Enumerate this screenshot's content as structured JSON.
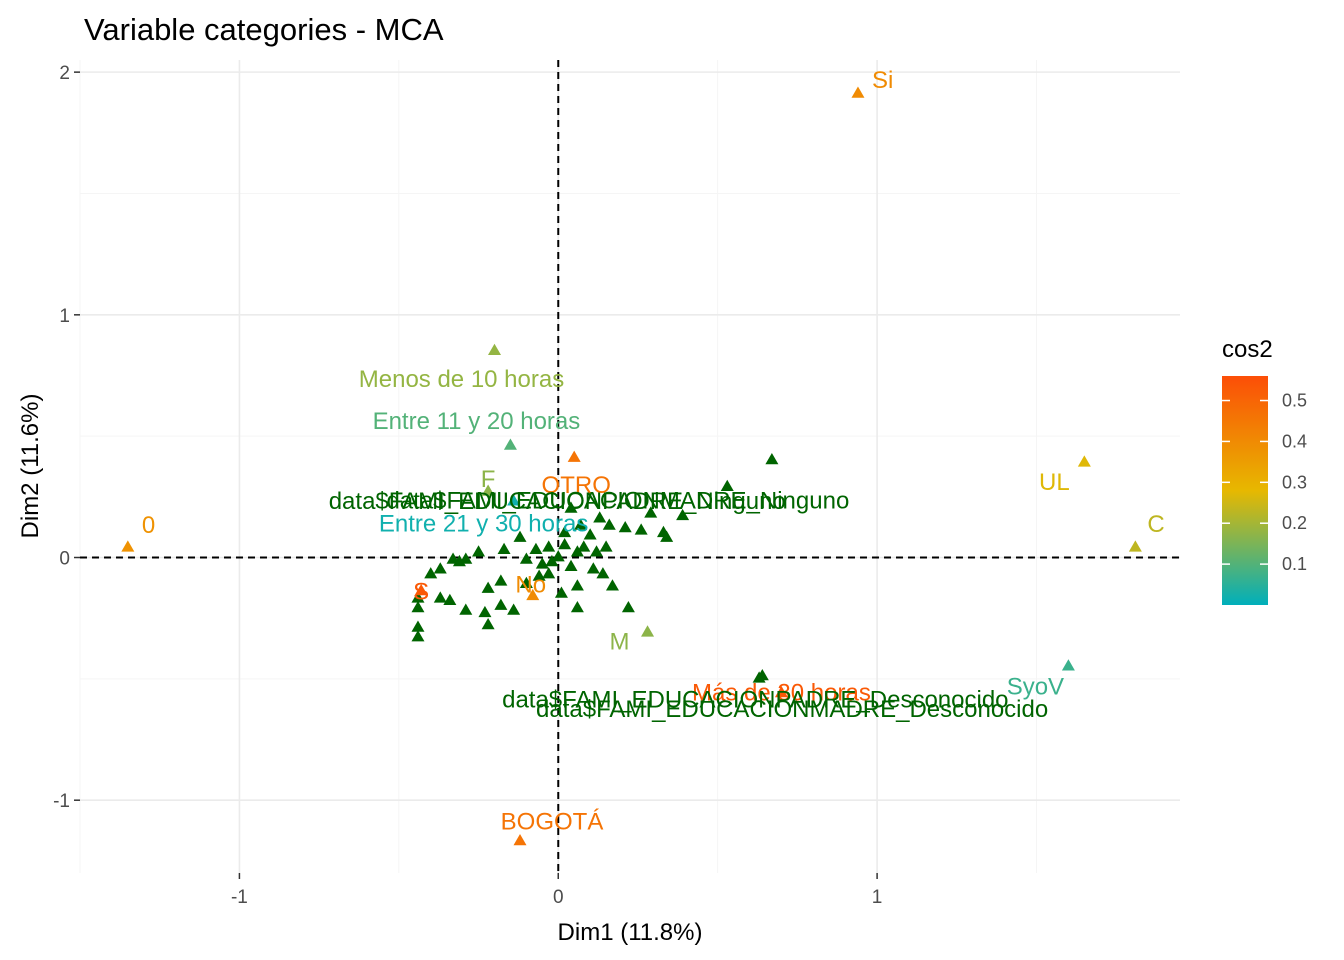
{
  "colors": {
    "panel_bg": "#ffffff",
    "grid_major": "#ebebeb",
    "grid_minor": "#f5f5f5",
    "refline": "#000000",
    "gradient": [
      "#00AFBB",
      "#E7B800",
      "#FC4E07"
    ],
    "individual_var": "#006400"
  },
  "chart_data": {
    "type": "scatter",
    "title": "Variable categories - MCA",
    "xlabel": "Dim1 (11.8%)",
    "ylabel": "Dim2 (11.6%)",
    "xlim": [
      -1.5,
      1.95
    ],
    "ylim": [
      -1.3,
      2.05
    ],
    "x_ticks": [
      -1,
      0,
      1
    ],
    "x_tick_labels": [
      "-1",
      "0",
      "1"
    ],
    "y_ticks": [
      -1,
      0,
      1,
      2
    ],
    "y_tick_labels": [
      "-1",
      "0",
      "1",
      "2"
    ],
    "grid": true,
    "reference_lines": {
      "x": 0,
      "y": 0,
      "style": "dashed"
    },
    "legend": {
      "title": "cos2",
      "placement": "right",
      "range": [
        0.0,
        0.56
      ],
      "ticks": [
        0.1,
        0.2,
        0.3,
        0.4,
        0.5
      ],
      "tick_labels": [
        "0.1",
        "0.2",
        "0.3",
        "0.4",
        "0.5"
      ]
    },
    "marker": "triangle",
    "points": [
      {
        "x": 0.94,
        "y": 1.91,
        "cos2": 0.4,
        "label": "Si"
      },
      {
        "x": -1.35,
        "y": 0.04,
        "cos2": 0.38,
        "label": "0"
      },
      {
        "x": 1.65,
        "y": 0.39,
        "cos2": 0.27,
        "label": "UL"
      },
      {
        "x": 1.81,
        "y": 0.04,
        "cos2": 0.23,
        "label": "C"
      },
      {
        "x": 1.6,
        "y": -0.45,
        "cos2": 0.07,
        "label": "SyoV"
      },
      {
        "x": -0.2,
        "y": 0.85,
        "cos2": 0.18,
        "label": "Menos de 10 horas"
      },
      {
        "x": -0.15,
        "y": 0.46,
        "cos2": 0.1,
        "label": "Entre 11 y 20 horas"
      },
      {
        "x": 0.05,
        "y": 0.41,
        "cos2": 0.46,
        "label": "OTRO"
      },
      {
        "x": -0.22,
        "y": 0.27,
        "cos2": 0.17,
        "label": "F"
      },
      {
        "x": -0.14,
        "y": 0.23,
        "cos2": 0.02,
        "label": "Entre 21 y 30 horas"
      },
      {
        "x": -0.43,
        "y": -0.14,
        "cos2": 0.53,
        "label": "S"
      },
      {
        "x": -0.08,
        "y": -0.16,
        "cos2": 0.4,
        "label": "No"
      },
      {
        "x": 0.28,
        "y": -0.31,
        "cos2": 0.17,
        "label": "M"
      },
      {
        "x": 0.7,
        "y": -0.56,
        "cos2": 0.53,
        "label": "Más de 30 horas"
      },
      {
        "x": -0.12,
        "y": -1.17,
        "cos2": 0.46,
        "label": "BOGOTÁ"
      },
      {
        "x": 0.67,
        "y": 0.4,
        "label": "data$FAMI_EDUCACIONMADRE_Ninguno",
        "color": "individual"
      },
      {
        "x": 0.53,
        "y": 0.29,
        "label": "data$FAMI_EDUCACIONPADRE_Ninguno",
        "color": "individual"
      },
      {
        "x": 0.64,
        "y": -0.49,
        "label": "data$FAMI_EDUCACIONPADRE_Desconocido",
        "color": "individual"
      },
      {
        "x": 0.63,
        "y": -0.5,
        "label": "data$FAMI_EDUCACIONMADRE_Desconocido",
        "color": "individual"
      }
    ],
    "background_points": [
      [
        0.04,
        0.2
      ],
      [
        0.07,
        0.13
      ],
      [
        0.1,
        0.09
      ],
      [
        0.13,
        0.16
      ],
      [
        0.16,
        0.13
      ],
      [
        0.21,
        0.12
      ],
      [
        0.26,
        0.11
      ],
      [
        0.29,
        0.18
      ],
      [
        0.33,
        0.1
      ],
      [
        0.34,
        0.08
      ],
      [
        0.39,
        0.17
      ],
      [
        0.02,
        0.05
      ],
      [
        0.06,
        0.02
      ],
      [
        0.12,
        0.02
      ],
      [
        0.15,
        0.04
      ],
      [
        -0.03,
        0.04
      ],
      [
        -0.07,
        0.03
      ],
      [
        -0.12,
        0.08
      ],
      [
        -0.17,
        0.03
      ],
      [
        -0.25,
        0.02
      ],
      [
        -0.29,
        -0.01
      ],
      [
        -0.31,
        -0.02
      ],
      [
        -0.33,
        -0.01
      ],
      [
        -0.37,
        -0.05
      ],
      [
        -0.4,
        -0.07
      ],
      [
        -0.44,
        -0.17
      ],
      [
        -0.44,
        -0.21
      ],
      [
        -0.37,
        -0.17
      ],
      [
        -0.34,
        -0.18
      ],
      [
        -0.29,
        -0.22
      ],
      [
        -0.23,
        -0.23
      ],
      [
        -0.22,
        -0.28
      ],
      [
        -0.18,
        -0.2
      ],
      [
        -0.14,
        -0.22
      ],
      [
        -0.1,
        -0.11
      ],
      [
        -0.06,
        -0.08
      ],
      [
        -0.02,
        -0.02
      ],
      [
        -0.03,
        -0.07
      ],
      [
        0.01,
        -0.15
      ],
      [
        0.06,
        -0.12
      ],
      [
        0.11,
        -0.05
      ],
      [
        0.14,
        -0.07
      ],
      [
        0.17,
        -0.12
      ],
      [
        0.22,
        -0.21
      ],
      [
        0.06,
        -0.21
      ],
      [
        -0.44,
        -0.29
      ],
      [
        -0.44,
        -0.33
      ],
      [
        -0.18,
        -0.1
      ],
      [
        -0.22,
        -0.13
      ],
      [
        -0.1,
        -0.01
      ],
      [
        0.04,
        -0.04
      ],
      [
        0.0,
        0.0
      ],
      [
        -0.05,
        -0.03
      ],
      [
        0.08,
        0.04
      ],
      [
        0.02,
        0.1
      ]
    ]
  }
}
